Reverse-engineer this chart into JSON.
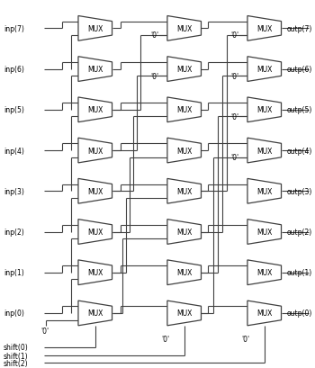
{
  "background_color": "#ffffff",
  "line_color": "#404040",
  "mux_fill": "#ffffff",
  "mux_edge": "#404040",
  "text_color": "#000000",
  "fig_width": 3.5,
  "fig_height": 4.1,
  "dpi": 100,
  "inp_labels": [
    "inp(7)",
    "inp(6)",
    "inp(5)",
    "inp(4)",
    "inp(3)",
    "inp(2)",
    "inp(1)",
    "inp(0)"
  ],
  "outp_labels": [
    "outp(7)",
    "outp(6)",
    "outp(5)",
    "outp(4)",
    "outp(3)",
    "outp(2)",
    "outp(1)",
    "outp(0)"
  ],
  "shift_labels": [
    "shift(0)",
    "shift(1)",
    "shift(2)"
  ]
}
